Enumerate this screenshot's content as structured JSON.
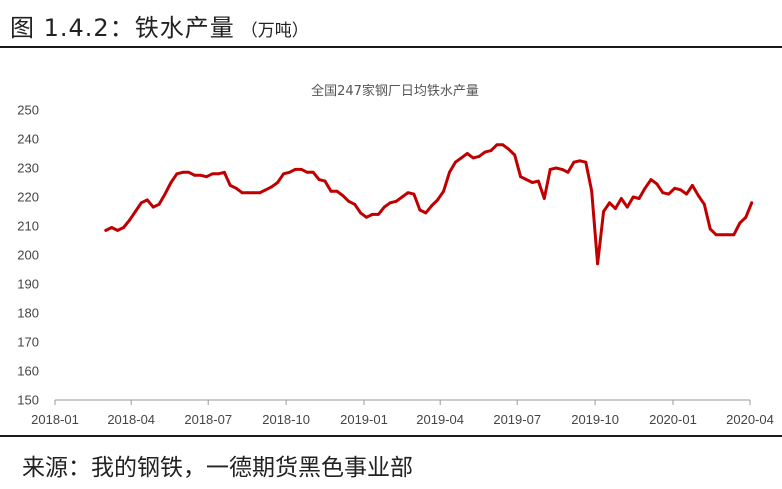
{
  "header": {
    "title": "图  1.4.2：铁水产量",
    "unit": "（万吨）"
  },
  "footer": {
    "source": "来源：我的钢铁，一德期货黑色事业部"
  },
  "colors": {
    "series": "#c00000",
    "axis": "#999999"
  },
  "chart_data": {
    "type": "line",
    "title": "全国247家钢厂日均铁水产量",
    "xlabel": "",
    "ylabel": "",
    "ylim": [
      150,
      250
    ],
    "yticks": [
      "150",
      "160",
      "170",
      "180",
      "190",
      "200",
      "210",
      "220",
      "230",
      "240",
      "250"
    ],
    "xlim": [
      "2018-01",
      "2020-04"
    ],
    "xticks": [
      "2018-01",
      "2018-04",
      "2018-07",
      "2018-10",
      "2019-01",
      "2019-04",
      "2019-07",
      "2019-10",
      "2020-01",
      "2020-04"
    ],
    "grid": false,
    "legend": "none",
    "series": [
      {
        "x": [
          "2018-03-02",
          "2018-03-09",
          "2018-03-16",
          "2018-03-23",
          "2018-03-30",
          "2018-04-06",
          "2018-04-13",
          "2018-04-20",
          "2018-04-27",
          "2018-05-04",
          "2018-05-11",
          "2018-05-18",
          "2018-05-25",
          "2018-06-01",
          "2018-06-08",
          "2018-06-15",
          "2018-06-22",
          "2018-06-29",
          "2018-07-06",
          "2018-07-13",
          "2018-07-20",
          "2018-07-27",
          "2018-08-03",
          "2018-08-10",
          "2018-08-17",
          "2018-08-24",
          "2018-08-31",
          "2018-09-07",
          "2018-09-14",
          "2018-09-21",
          "2018-09-28",
          "2018-10-05",
          "2018-10-12",
          "2018-10-19",
          "2018-10-26",
          "2018-11-02",
          "2018-11-09",
          "2018-11-16",
          "2018-11-23",
          "2018-11-30",
          "2018-12-07",
          "2018-12-14",
          "2018-12-21",
          "2018-12-28",
          "2019-01-04",
          "2019-01-11",
          "2019-01-18",
          "2019-01-25",
          "2019-02-01",
          "2019-02-08",
          "2019-02-15",
          "2019-02-22",
          "2019-03-01",
          "2019-03-08",
          "2019-03-15",
          "2019-03-22",
          "2019-03-29",
          "2019-04-05",
          "2019-04-12",
          "2019-04-19",
          "2019-04-26",
          "2019-05-03",
          "2019-05-10",
          "2019-05-17",
          "2019-05-24",
          "2019-05-31",
          "2019-06-07",
          "2019-06-14",
          "2019-06-21",
          "2019-06-28",
          "2019-07-05",
          "2019-07-12",
          "2019-07-19",
          "2019-07-26",
          "2019-08-02",
          "2019-08-09",
          "2019-08-16",
          "2019-08-23",
          "2019-08-30",
          "2019-09-06",
          "2019-09-13",
          "2019-09-20",
          "2019-09-27",
          "2019-10-04",
          "2019-10-11",
          "2019-10-18",
          "2019-10-25",
          "2019-11-01",
          "2019-11-08",
          "2019-11-15",
          "2019-11-22",
          "2019-11-29",
          "2019-12-06",
          "2019-12-13",
          "2019-12-20",
          "2019-12-27",
          "2020-01-03",
          "2020-01-10",
          "2020-01-17",
          "2020-01-24",
          "2020-01-31",
          "2020-02-07",
          "2020-02-14",
          "2020-02-21",
          "2020-02-28",
          "2020-03-06",
          "2020-03-13",
          "2020-03-20",
          "2020-03-27",
          "2020-04-03"
        ],
        "y": [
          208.5,
          209.5,
          208.5,
          209.5,
          212,
          215,
          218,
          219,
          216.5,
          217.5,
          221,
          225,
          228,
          228.5,
          228.5,
          227.5,
          227.5,
          227,
          228,
          228,
          228.5,
          224,
          223,
          221.5,
          221.5,
          221.5,
          221.5,
          222.5,
          223.5,
          225,
          228,
          228.5,
          229.5,
          229.5,
          228.5,
          228.5,
          226,
          225.5,
          222,
          222,
          220.5,
          218.5,
          217.5,
          214.5,
          213,
          214,
          214,
          216.5,
          218,
          218.5,
          220,
          221.5,
          221,
          215.5,
          214.5,
          217,
          219,
          222,
          228.5,
          232,
          233.5,
          235,
          233.5,
          234,
          235.5,
          236,
          238,
          238,
          236.5,
          234.5,
          227,
          226,
          225,
          225.5,
          219.5,
          229.5,
          230,
          229.5,
          228.5,
          232,
          232.5,
          232,
          222,
          197,
          215,
          218,
          216,
          219.5,
          216.5,
          220,
          219.5,
          223,
          226,
          224.5,
          221.5,
          221,
          223,
          222.5,
          221,
          224,
          220.5,
          217.5,
          209,
          207,
          207,
          207,
          207,
          211,
          213,
          218
        ]
      }
    ]
  }
}
